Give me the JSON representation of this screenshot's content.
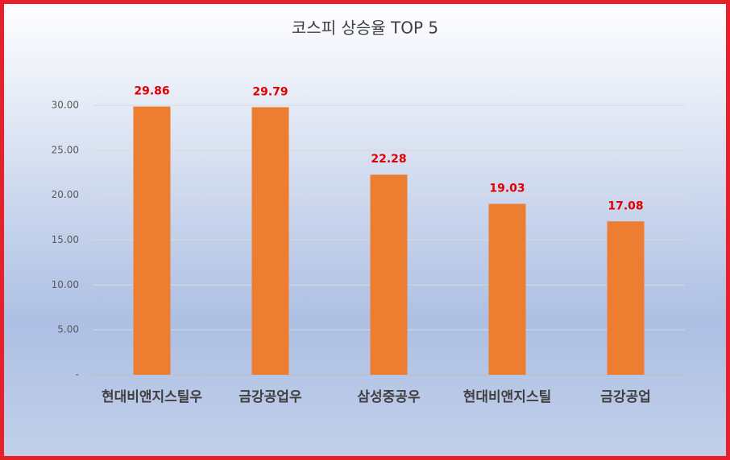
{
  "chart_data": {
    "type": "bar",
    "title": "코스피 상승율 TOP 5",
    "categories": [
      "현대비앤지스틸우",
      "금강공업우",
      "삼성중공우",
      "현대비앤지스틸",
      "금강공업"
    ],
    "values": [
      29.86,
      29.79,
      22.28,
      19.03,
      17.08
    ],
    "color": "#ed7d31",
    "value_label_color": "#e00000",
    "ylim": [
      0,
      30
    ],
    "yticks": [
      {
        "value": 0,
        "label": "-"
      },
      {
        "value": 5,
        "label": "5.00"
      },
      {
        "value": 10,
        "label": "10.00"
      },
      {
        "value": 15,
        "label": "15.00"
      },
      {
        "value": 20,
        "label": "20.00"
      },
      {
        "value": 25,
        "label": "25.00"
      },
      {
        "value": 30,
        "label": "30.00"
      }
    ],
    "grid": true
  }
}
